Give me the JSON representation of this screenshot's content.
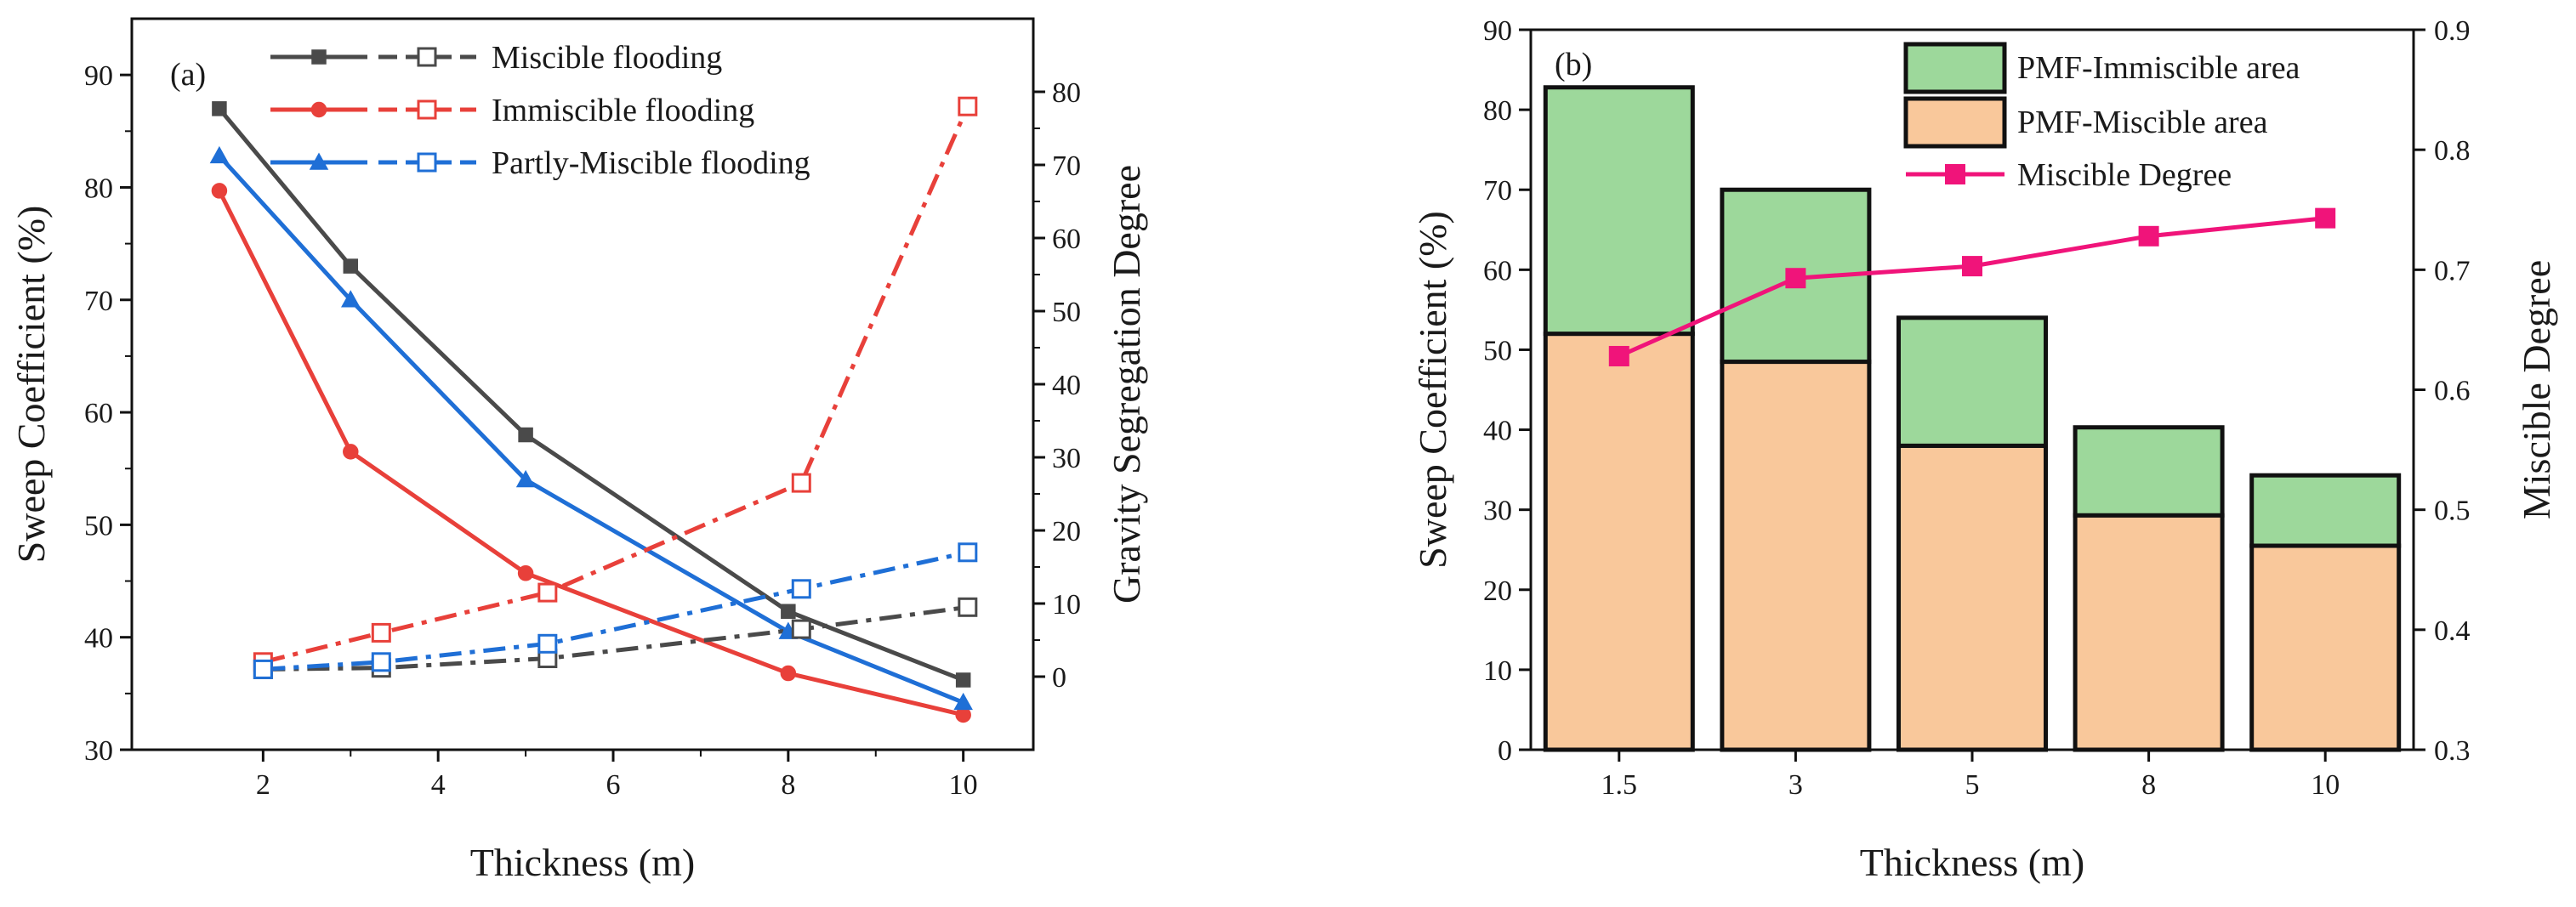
{
  "chart_data": [
    {
      "type": "line",
      "panel_label": "(a)",
      "xlabel": "Thickness (m)",
      "ylabel": "Sweep Coefficient (%)",
      "y2label": "Gravity Segregation Degree",
      "xlim": [
        0.5,
        10.8
      ],
      "ylim": [
        30,
        95
      ],
      "y2lim": [
        -10,
        90
      ],
      "x_ticks": [
        2,
        4,
        6,
        8,
        10
      ],
      "y_ticks": [
        30,
        40,
        50,
        60,
        70,
        80,
        90
      ],
      "y2_ticks": [
        0,
        10,
        20,
        30,
        40,
        50,
        60,
        70,
        80
      ],
      "legend_position": "top",
      "series": [
        {
          "name": "Miscible flooding",
          "color": "#4a4a4a",
          "axis": "left",
          "x": [
            1.5,
            3,
            5,
            8,
            10
          ],
          "values": [
            87,
            73,
            58,
            42.3,
            36.2
          ]
        },
        {
          "name": "Immiscible flooding",
          "color": "#e8403a",
          "axis": "left",
          "x": [
            1.5,
            3,
            5,
            8,
            10
          ],
          "values": [
            79.7,
            56.5,
            45.7,
            36.8,
            33.1
          ]
        },
        {
          "name": "Partly-Miscible flooding",
          "color": "#1f6fd6",
          "axis": "left",
          "x": [
            1.5,
            3,
            5,
            8,
            10
          ],
          "values": [
            82.8,
            70,
            54,
            40.5,
            34.2
          ]
        },
        {
          "name": "Miscible flooding (segregation)",
          "color": "#4a4a4a",
          "axis": "right",
          "x": [
            2,
            3.35,
            5.25,
            8.15,
            10.05
          ],
          "values": [
            1,
            1.2,
            2.5,
            6.5,
            9.5
          ]
        },
        {
          "name": "Immiscible flooding (segregation)",
          "color": "#e8403a",
          "axis": "right",
          "x": [
            2,
            3.35,
            5.25,
            8.15,
            10.05
          ],
          "values": [
            2,
            6,
            11.5,
            26.5,
            78
          ]
        },
        {
          "name": "Partly-Miscible flooding (segregation)",
          "color": "#1f6fd6",
          "axis": "right",
          "x": [
            2,
            3.35,
            5.25,
            8.15,
            10.05
          ],
          "values": [
            1,
            2,
            4.5,
            12,
            17
          ]
        }
      ]
    },
    {
      "type": "bar",
      "panel_label": "(b)",
      "xlabel": "Thickness (m)",
      "ylabel": "Sweep Coefficient (%)",
      "y2label": "Miscible Degree",
      "categories": [
        "1.5",
        "3",
        "5",
        "8",
        "10"
      ],
      "ylim": [
        0,
        90
      ],
      "y2lim": [
        0.3,
        0.9
      ],
      "y_ticks": [
        0,
        10,
        20,
        30,
        40,
        50,
        60,
        70,
        80,
        90
      ],
      "y2_ticks": [
        "0.3",
        "0.4",
        "0.5",
        "0.6",
        "0.7",
        "0.8",
        "0.9"
      ],
      "legend_position": "top-right",
      "series": [
        {
          "name": "PMF-Miscible area",
          "color": "#f9c89b",
          "values": [
            52,
            48.5,
            38,
            29.3,
            25.5
          ]
        },
        {
          "name": "PMF-Immiscible area",
          "color": "#9dd89b",
          "values": [
            30.8,
            21.5,
            16,
            11,
            8.8
          ]
        },
        {
          "name": "Miscible Degree",
          "color": "#f0147a",
          "type": "line",
          "axis": "right",
          "values": [
            0.628,
            0.693,
            0.703,
            0.728,
            0.743
          ]
        }
      ]
    }
  ]
}
